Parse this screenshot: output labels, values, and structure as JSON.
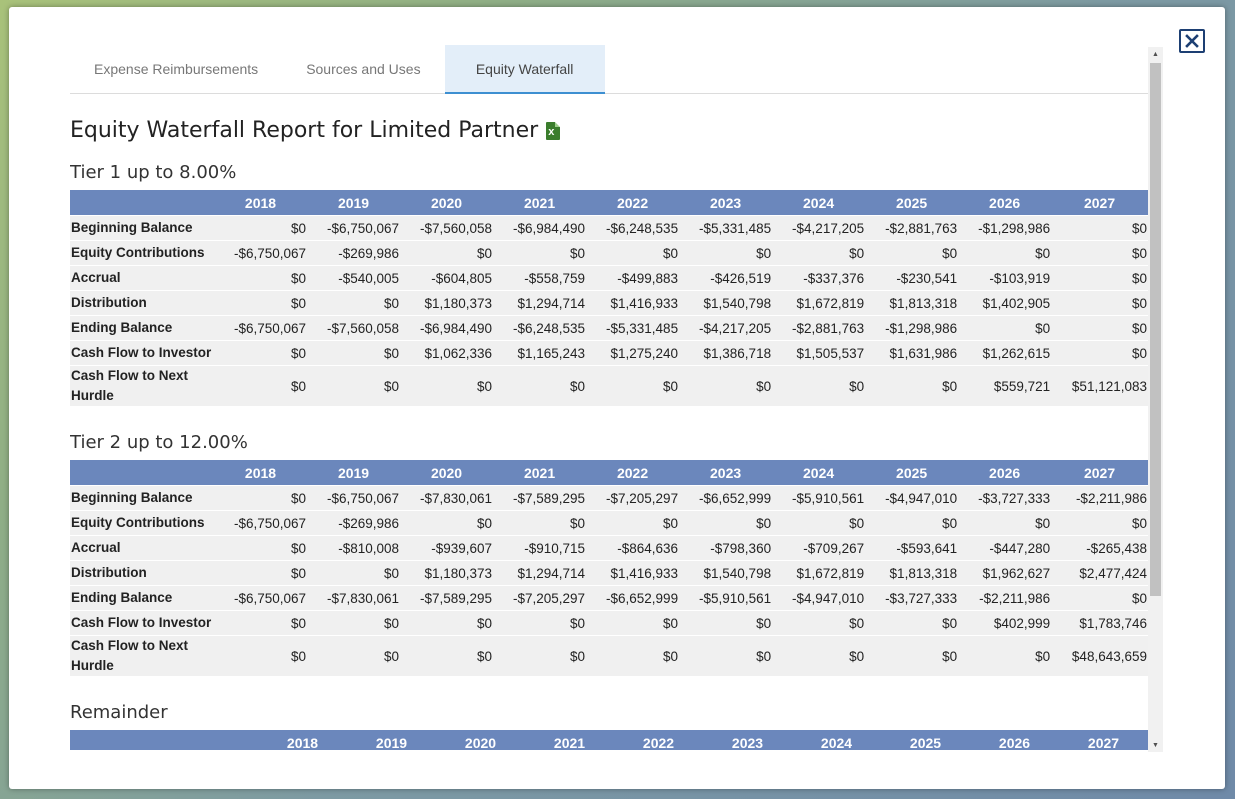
{
  "tabs": [
    {
      "label": "Expense Reimbursements",
      "active": false
    },
    {
      "label": "Sources and Uses",
      "active": false
    },
    {
      "label": "Equity Waterfall",
      "active": true
    }
  ],
  "report": {
    "title": "Equity Waterfall Report for Limited Partner",
    "export_icon": "excel-icon",
    "export_icon_letter": "x"
  },
  "years": [
    "2018",
    "2019",
    "2020",
    "2021",
    "2022",
    "2023",
    "2024",
    "2025",
    "2026",
    "2027"
  ],
  "tiers": [
    {
      "title": "Tier 1 up to 8.00%",
      "rows": [
        {
          "label": "Beginning Balance",
          "values": [
            "$0",
            "-$6,750,067",
            "-$7,560,058",
            "-$6,984,490",
            "-$6,248,535",
            "-$5,331,485",
            "-$4,217,205",
            "-$2,881,763",
            "-$1,298,986",
            "$0"
          ]
        },
        {
          "label": "Equity Contributions",
          "values": [
            "-$6,750,067",
            "-$269,986",
            "$0",
            "$0",
            "$0",
            "$0",
            "$0",
            "$0",
            "$0",
            "$0"
          ]
        },
        {
          "label": "Accrual",
          "values": [
            "$0",
            "-$540,005",
            "-$604,805",
            "-$558,759",
            "-$499,883",
            "-$426,519",
            "-$337,376",
            "-$230,541",
            "-$103,919",
            "$0"
          ]
        },
        {
          "label": "Distribution",
          "values": [
            "$0",
            "$0",
            "$1,180,373",
            "$1,294,714",
            "$1,416,933",
            "$1,540,798",
            "$1,672,819",
            "$1,813,318",
            "$1,402,905",
            "$0"
          ]
        },
        {
          "label": "Ending Balance",
          "values": [
            "-$6,750,067",
            "-$7,560,058",
            "-$6,984,490",
            "-$6,248,535",
            "-$5,331,485",
            "-$4,217,205",
            "-$2,881,763",
            "-$1,298,986",
            "$0",
            "$0"
          ]
        },
        {
          "label": "Cash Flow to Investor",
          "values": [
            "$0",
            "$0",
            "$1,062,336",
            "$1,165,243",
            "$1,275,240",
            "$1,386,718",
            "$1,505,537",
            "$1,631,986",
            "$1,262,615",
            "$0"
          ]
        },
        {
          "label": "Cash Flow to Next Hurdle",
          "values": [
            "$0",
            "$0",
            "$0",
            "$0",
            "$0",
            "$0",
            "$0",
            "$0",
            "$559,721",
            "$51,121,083"
          ]
        }
      ]
    },
    {
      "title": "Tier 2 up to 12.00%",
      "rows": [
        {
          "label": "Beginning Balance",
          "values": [
            "$0",
            "-$6,750,067",
            "-$7,830,061",
            "-$7,589,295",
            "-$7,205,297",
            "-$6,652,999",
            "-$5,910,561",
            "-$4,947,010",
            "-$3,727,333",
            "-$2,211,986"
          ]
        },
        {
          "label": "Equity Contributions",
          "values": [
            "-$6,750,067",
            "-$269,986",
            "$0",
            "$0",
            "$0",
            "$0",
            "$0",
            "$0",
            "$0",
            "$0"
          ]
        },
        {
          "label": "Accrual",
          "values": [
            "$0",
            "-$810,008",
            "-$939,607",
            "-$910,715",
            "-$864,636",
            "-$798,360",
            "-$709,267",
            "-$593,641",
            "-$447,280",
            "-$265,438"
          ]
        },
        {
          "label": "Distribution",
          "values": [
            "$0",
            "$0",
            "$1,180,373",
            "$1,294,714",
            "$1,416,933",
            "$1,540,798",
            "$1,672,819",
            "$1,813,318",
            "$1,962,627",
            "$2,477,424"
          ]
        },
        {
          "label": "Ending Balance",
          "values": [
            "-$6,750,067",
            "-$7,830,061",
            "-$7,589,295",
            "-$7,205,297",
            "-$6,652,999",
            "-$5,910,561",
            "-$4,947,010",
            "-$3,727,333",
            "-$2,211,986",
            "$0"
          ]
        },
        {
          "label": "Cash Flow to Investor",
          "values": [
            "$0",
            "$0",
            "$0",
            "$0",
            "$0",
            "$0",
            "$0",
            "$0",
            "$402,999",
            "$1,783,746"
          ]
        },
        {
          "label": "Cash Flow to Next Hurdle",
          "values": [
            "$0",
            "$0",
            "$0",
            "$0",
            "$0",
            "$0",
            "$0",
            "$0",
            "$0",
            "$48,643,659"
          ]
        }
      ]
    }
  ],
  "remainder": {
    "title": "Remainder"
  },
  "icons": {
    "close": "close-icon",
    "scroll_up": "scroll-up-arrow-icon",
    "scroll_down": "scroll-down-arrow-icon"
  }
}
